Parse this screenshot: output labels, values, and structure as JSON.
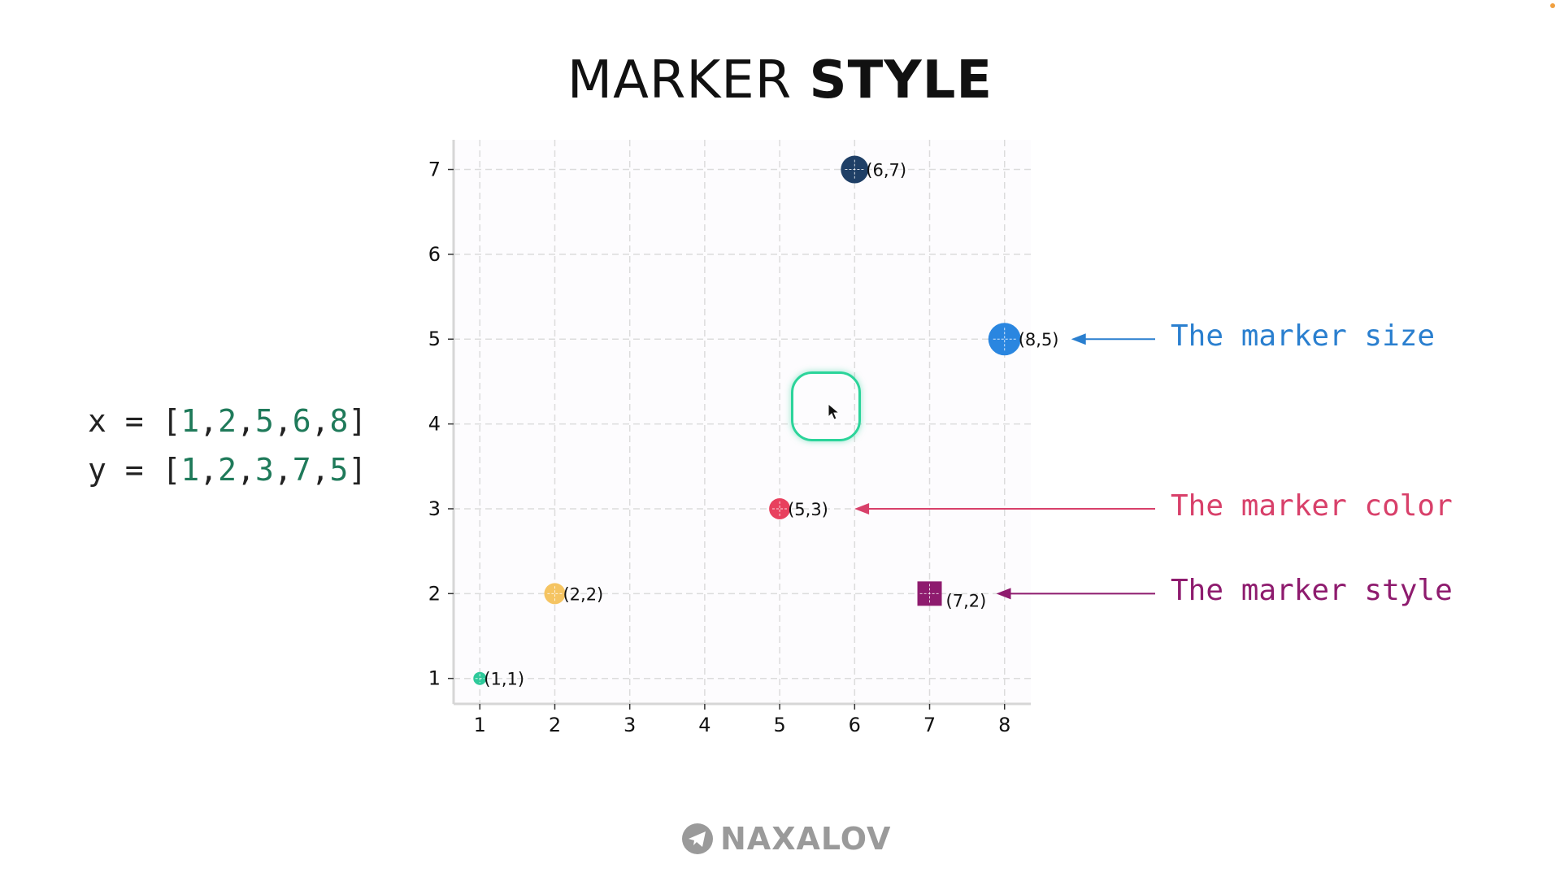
{
  "title": {
    "light": "MARKER",
    "bold": "STYLE"
  },
  "code": {
    "x_prefix": "x = [",
    "x_values": [
      "1",
      "2",
      "5",
      "6",
      "8"
    ],
    "y_prefix": "y = [",
    "y_values": [
      "1",
      "2",
      "3",
      "7",
      "5"
    ],
    "close": "]",
    "sep": ","
  },
  "chart_data": {
    "type": "scatter",
    "x": [
      1,
      2,
      5,
      6,
      8,
      7
    ],
    "y": [
      1,
      2,
      3,
      7,
      5,
      2
    ],
    "xlim": [
      0.65,
      8.35
    ],
    "ylim": [
      0.7,
      7.35
    ],
    "xticks": [
      1,
      2,
      3,
      4,
      5,
      6,
      7,
      8
    ],
    "yticks": [
      1,
      2,
      3,
      4,
      5,
      6,
      7
    ],
    "grid": true,
    "points": [
      {
        "x": 1,
        "y": 1,
        "label": "(1,1)",
        "color": "#2ec99a",
        "marker": "circle",
        "size": "small"
      },
      {
        "x": 2,
        "y": 2,
        "label": "(2,2)",
        "color": "#f5c462",
        "marker": "circle",
        "size": "medium"
      },
      {
        "x": 5,
        "y": 3,
        "label": "(5,3)",
        "color": "#e8405e",
        "marker": "circle",
        "size": "medium"
      },
      {
        "x": 6,
        "y": 7,
        "label": "(6,7)",
        "color": "#1f3f66",
        "marker": "circle",
        "size": "large"
      },
      {
        "x": 8,
        "y": 5,
        "label": "(8,5)",
        "color": "#2a86e0",
        "marker": "circle",
        "size": "xlarge"
      },
      {
        "x": 7,
        "y": 2,
        "label": "(7,2)",
        "color": "#8e1b6e",
        "marker": "square",
        "size": "large"
      }
    ]
  },
  "annotations": [
    {
      "text": "The marker size",
      "color": "#2a7fcf",
      "target": [
        8,
        5
      ]
    },
    {
      "text": "The marker color",
      "color": "#d8406a",
      "target": [
        5,
        3
      ]
    },
    {
      "text": "The marker style",
      "color": "#8e1b6e",
      "target": [
        7,
        2
      ]
    }
  ],
  "logo": {
    "text": "NAXALOV",
    "icon": "telegram-icon"
  }
}
